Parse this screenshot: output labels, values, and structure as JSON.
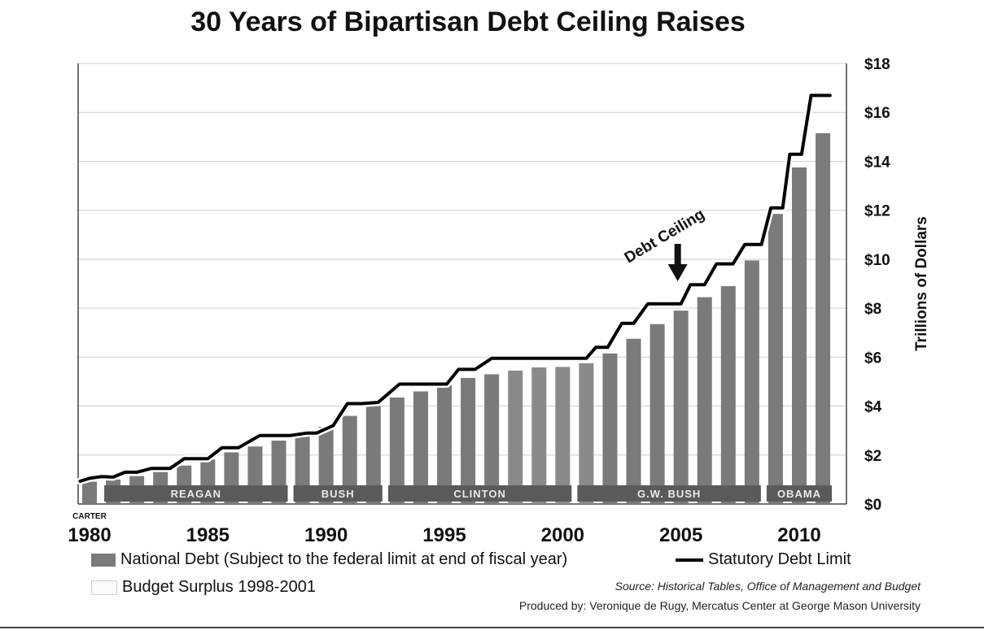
{
  "chart_data": {
    "type": "bar",
    "title": "30 Years of Bipartisan Debt Ceiling Raises",
    "ylabel": "Trillions of Dollars",
    "ylim": [
      0,
      18
    ],
    "y_ticks": [
      0,
      2,
      4,
      6,
      8,
      10,
      12,
      14,
      16,
      18
    ],
    "y_tick_labels": [
      "$0",
      "$2",
      "$4",
      "$6",
      "$8",
      "$10",
      "$12",
      "$14",
      "$16",
      "$18"
    ],
    "x_ticks": [
      1980,
      1985,
      1990,
      1995,
      2000,
      2005,
      2010
    ],
    "x_tick_labels": [
      "1980",
      "1985",
      "1990",
      "1995",
      "2000",
      "2005",
      "2010"
    ],
    "grid": true,
    "series": [
      {
        "name": "National Debt (Subject to the federal limit at end of fiscal year)",
        "style": "bar",
        "color": "#7a7a7a",
        "x": [
          1980,
          1981,
          1982,
          1983,
          1984,
          1985,
          1986,
          1987,
          1988,
          1989,
          1990,
          1991,
          1992,
          1993,
          1994,
          1995,
          1996,
          1997,
          1998,
          1999,
          2000,
          2001,
          2002,
          2003,
          2004,
          2005,
          2006,
          2007,
          2008,
          2009,
          2010,
          2011
        ],
        "values": [
          0.91,
          1.0,
          1.14,
          1.38,
          1.57,
          1.82,
          2.11,
          2.35,
          2.59,
          2.83,
          3.16,
          3.6,
          4.0,
          4.35,
          4.6,
          4.85,
          5.15,
          5.3,
          5.45,
          5.58,
          5.6,
          5.75,
          6.15,
          6.75,
          7.35,
          7.9,
          8.45,
          8.9,
          9.95,
          11.85,
          13.75,
          15.15
        ]
      },
      {
        "name": "Statutory Debt Limit",
        "style": "step-line",
        "color": "#000000",
        "x": [
          1979.6,
          1980,
          1980.5,
          1981,
          1981.5,
          1982,
          1982.6,
          1983.4,
          1984,
          1984.5,
          1985,
          1985.6,
          1986.3,
          1987.2,
          1987.9,
          1988.5,
          1989.2,
          1989.6,
          1990.3,
          1990.9,
          1991.5,
          1992.2,
          1993.1,
          1993.6,
          1994.3,
          1995.1,
          1995.6,
          1996.3,
          1997,
          1998,
          1999,
          2000,
          2001,
          2001.4,
          2001.9,
          2002.5,
          2003,
          2003.6,
          2004,
          2004.5,
          2005,
          2005.4,
          2006,
          2006.5,
          2007.2,
          2007.7,
          2008.4,
          2008.8,
          2009.3,
          2009.6,
          2010.1,
          2010.5,
          2010.8,
          2011.3
        ],
        "values": [
          0.93,
          1.05,
          1.12,
          1.1,
          1.3,
          1.3,
          1.45,
          1.45,
          1.85,
          1.85,
          1.85,
          2.3,
          2.3,
          2.8,
          2.8,
          2.8,
          2.9,
          2.9,
          3.2,
          4.1,
          4.1,
          4.15,
          4.9,
          4.9,
          4.9,
          4.9,
          5.5,
          5.5,
          5.95,
          5.95,
          5.95,
          5.95,
          5.95,
          6.4,
          6.4,
          7.38,
          7.38,
          8.18,
          8.18,
          8.18,
          8.18,
          8.96,
          8.96,
          9.81,
          9.81,
          10.6,
          10.6,
          12.1,
          12.1,
          14.29,
          14.29,
          16.69,
          16.69,
          16.69
        ]
      }
    ],
    "surplus_years": [
      1998,
      1999,
      2000,
      2001
    ],
    "presidents": [
      {
        "name": "REAGAN",
        "start": 1981,
        "end": 1988
      },
      {
        "name": "BUSH",
        "start": 1989,
        "end": 1992
      },
      {
        "name": "CLINTON",
        "start": 1993,
        "end": 2000
      },
      {
        "name": "G.W. BUSH",
        "start": 2001,
        "end": 2008
      },
      {
        "name": "OBAMA",
        "start": 2009,
        "end": 2011
      }
    ],
    "carter_label": "CARTER",
    "annotation": {
      "text": "Debt Ceiling",
      "x": 2005,
      "y": 8.2
    }
  },
  "legend": {
    "debt": "National Debt (Subject to the federal limit at end of fiscal year)",
    "limit": "Statutory Debt Limit",
    "surplus": "Budget Surplus 1998-2001"
  },
  "source": "Source: Historical Tables, Office of Management and Budget",
  "produced_by": "Produced by: Veronique de Rugy, Mercatus Center at George Mason University"
}
